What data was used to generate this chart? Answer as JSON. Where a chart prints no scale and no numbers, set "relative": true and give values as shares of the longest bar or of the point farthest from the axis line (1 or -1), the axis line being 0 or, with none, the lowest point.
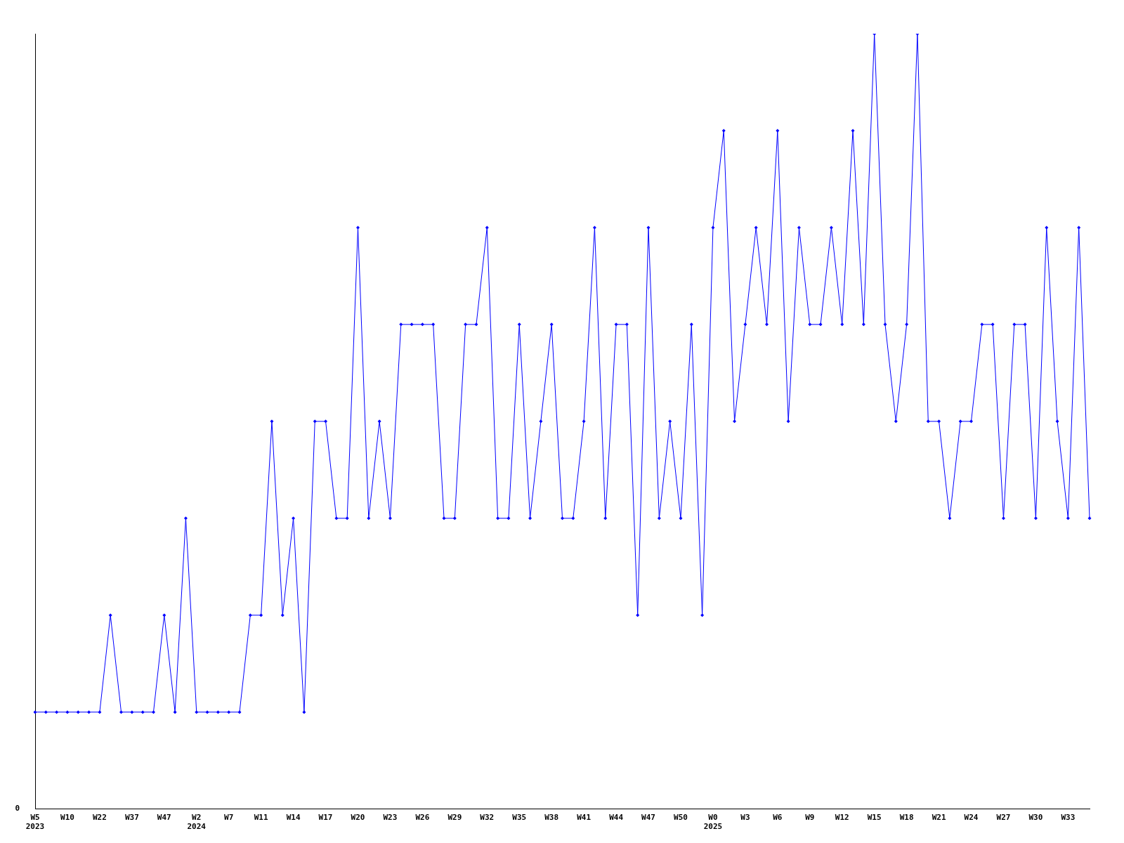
{
  "chart_data": {
    "type": "line",
    "relative": true,
    "color": "#0000ff",
    "marker": "diamond",
    "grid": false,
    "legend": false,
    "annotations": [
      "0"
    ],
    "categories": [
      "W5\n2023",
      null,
      null,
      "W10",
      null,
      null,
      "W22",
      null,
      null,
      "W37",
      null,
      null,
      "W47",
      null,
      null,
      "W2\n2024",
      null,
      null,
      "W7",
      null,
      null,
      "W11",
      null,
      null,
      "W14",
      null,
      null,
      "W17",
      null,
      null,
      "W20",
      null,
      null,
      "W23",
      null,
      null,
      "W26",
      null,
      null,
      "W29",
      null,
      null,
      "W32",
      null,
      null,
      "W35",
      null,
      null,
      "W38",
      null,
      null,
      "W41",
      null,
      null,
      "W44",
      null,
      null,
      "W47",
      null,
      null,
      "W50",
      null,
      null,
      "W0\n2025",
      null,
      null,
      "W3",
      null,
      null,
      "W6",
      null,
      null,
      "W9",
      null,
      null,
      "W12",
      null,
      null,
      "W15",
      null,
      null,
      "W18",
      null,
      null,
      "W21",
      null,
      null,
      "W24",
      null,
      null,
      "W27",
      null,
      null,
      "W30",
      null,
      null,
      "W33",
      null,
      null
    ],
    "values": [
      0.125,
      0.125,
      0.125,
      0.125,
      0.125,
      0.125,
      0.125,
      0.25,
      0.125,
      0.125,
      0.125,
      0.125,
      0.25,
      0.125,
      0.375,
      0.125,
      0.125,
      0.125,
      0.125,
      0.125,
      0.25,
      0.25,
      0.5,
      0.25,
      0.375,
      0.125,
      0.5,
      0.5,
      0.375,
      0.375,
      0.75,
      0.375,
      0.5,
      0.375,
      0.625,
      0.625,
      0.625,
      0.625,
      0.375,
      0.375,
      0.625,
      0.625,
      0.75,
      0.375,
      0.375,
      0.625,
      0.375,
      0.5,
      0.625,
      0.375,
      0.375,
      0.5,
      0.75,
      0.375,
      0.625,
      0.625,
      0.25,
      0.75,
      0.375,
      0.5,
      0.375,
      0.625,
      0.25,
      0.75,
      0.875,
      0.5,
      0.625,
      0.75,
      0.625,
      0.875,
      0.5,
      0.75,
      0.625,
      0.625,
      0.75,
      0.625,
      0.875,
      0.625,
      1,
      0.625,
      0.5,
      0.625,
      1,
      0.5,
      0.5,
      0.375,
      0.5,
      0.5,
      0.625,
      0.625,
      0.375,
      0.625,
      0.625,
      0.375,
      0.75,
      0.5,
      0.375,
      0.75,
      0.375
    ]
  }
}
